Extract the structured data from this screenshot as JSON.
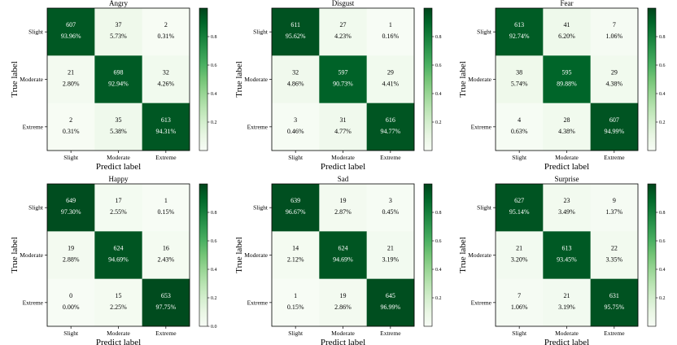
{
  "common": {
    "classes": [
      "Slight",
      "Moderate",
      "Extreme"
    ],
    "xlabel": "Predict label",
    "ylabel": "True label",
    "colormap": "Greens",
    "color_low": "#f7fcf5",
    "color_high": "#00441b",
    "colorbar_ticks": [
      "0.2",
      "0.4",
      "0.6",
      "0.8"
    ]
  },
  "chart_data": [
    {
      "type": "heatmap",
      "title": "Angry",
      "counts": [
        [
          607,
          37,
          2
        ],
        [
          21,
          698,
          32
        ],
        [
          2,
          35,
          613
        ]
      ],
      "percent_labels": [
        [
          "93.96%",
          "5.73%",
          "0.31%"
        ],
        [
          "2.80%",
          "92.94%",
          "4.26%"
        ],
        [
          "0.31%",
          "5.38%",
          "94.31%"
        ]
      ],
      "values": [
        [
          0.9396,
          0.0573,
          0.0031
        ],
        [
          0.028,
          0.9294,
          0.0426
        ],
        [
          0.0031,
          0.0538,
          0.9431
        ]
      ],
      "colorbar_ticks": [
        "0.2",
        "0.4",
        "0.6",
        "0.8"
      ]
    },
    {
      "type": "heatmap",
      "title": "Disgust",
      "counts": [
        [
          611,
          27,
          1
        ],
        [
          32,
          597,
          29
        ],
        [
          3,
          31,
          616
        ]
      ],
      "percent_labels": [
        [
          "95.62%",
          "4.23%",
          "0.16%"
        ],
        [
          "4.86%",
          "90.73%",
          "4.41%"
        ],
        [
          "0.46%",
          "4.77%",
          "94.77%"
        ]
      ],
      "values": [
        [
          0.9562,
          0.0423,
          0.0016
        ],
        [
          0.0486,
          0.9073,
          0.0441
        ],
        [
          0.0046,
          0.0477,
          0.9477
        ]
      ],
      "colorbar_ticks": [
        "0.2",
        "0.4",
        "0.6",
        "0.8"
      ]
    },
    {
      "type": "heatmap",
      "title": "Fear",
      "counts": [
        [
          613,
          41,
          7
        ],
        [
          38,
          595,
          29
        ],
        [
          4,
          28,
          607
        ]
      ],
      "percent_labels": [
        [
          "92.74%",
          "6.20%",
          "1.06%"
        ],
        [
          "5.74%",
          "89.88%",
          "4.38%"
        ],
        [
          "0.63%",
          "4.38%",
          "94.99%"
        ]
      ],
      "values": [
        [
          0.9274,
          0.062,
          0.0106
        ],
        [
          0.0574,
          0.8988,
          0.0438
        ],
        [
          0.0063,
          0.0438,
          0.9499
        ]
      ],
      "colorbar_ticks": [
        "0.2",
        "0.4",
        "0.6",
        "0.8"
      ]
    },
    {
      "type": "heatmap",
      "title": "Happy",
      "counts": [
        [
          649,
          17,
          1
        ],
        [
          19,
          624,
          16
        ],
        [
          0,
          15,
          653
        ]
      ],
      "percent_labels": [
        [
          "97.30%",
          "2.55%",
          "0.15%"
        ],
        [
          "2.88%",
          "94.69%",
          "2.43%"
        ],
        [
          "0.00%",
          "2.25%",
          "97.75%"
        ]
      ],
      "values": [
        [
          0.973,
          0.0255,
          0.0015
        ],
        [
          0.0288,
          0.9469,
          0.0243
        ],
        [
          0.0,
          0.0225,
          0.9775
        ]
      ],
      "colorbar_ticks": [
        "0.0",
        "0.2",
        "0.4",
        "0.6",
        "0.8"
      ]
    },
    {
      "type": "heatmap",
      "title": "Sad",
      "counts": [
        [
          639,
          19,
          3
        ],
        [
          14,
          624,
          21
        ],
        [
          1,
          19,
          645
        ]
      ],
      "percent_labels": [
        [
          "96.67%",
          "2.87%",
          "0.45%"
        ],
        [
          "2.12%",
          "94.69%",
          "3.19%"
        ],
        [
          "0.15%",
          "2.86%",
          "96.99%"
        ]
      ],
      "values": [
        [
          0.9667,
          0.0287,
          0.0045
        ],
        [
          0.0212,
          0.9469,
          0.0319
        ],
        [
          0.0015,
          0.0286,
          0.9699
        ]
      ],
      "colorbar_ticks": [
        "0.2",
        "0.4",
        "0.6",
        "0.8"
      ]
    },
    {
      "type": "heatmap",
      "title": "Surprise",
      "counts": [
        [
          627,
          23,
          9
        ],
        [
          21,
          613,
          22
        ],
        [
          7,
          21,
          631
        ]
      ],
      "percent_labels": [
        [
          "95.14%",
          "3.49%",
          "1.37%"
        ],
        [
          "3.20%",
          "93.45%",
          "3.35%"
        ],
        [
          "1.06%",
          "3.19%",
          "95.75%"
        ]
      ],
      "values": [
        [
          0.9514,
          0.0349,
          0.0137
        ],
        [
          0.032,
          0.9345,
          0.0335
        ],
        [
          0.0106,
          0.0319,
          0.9575
        ]
      ],
      "colorbar_ticks": [
        "0.2",
        "0.4",
        "0.6",
        "0.8"
      ]
    }
  ]
}
